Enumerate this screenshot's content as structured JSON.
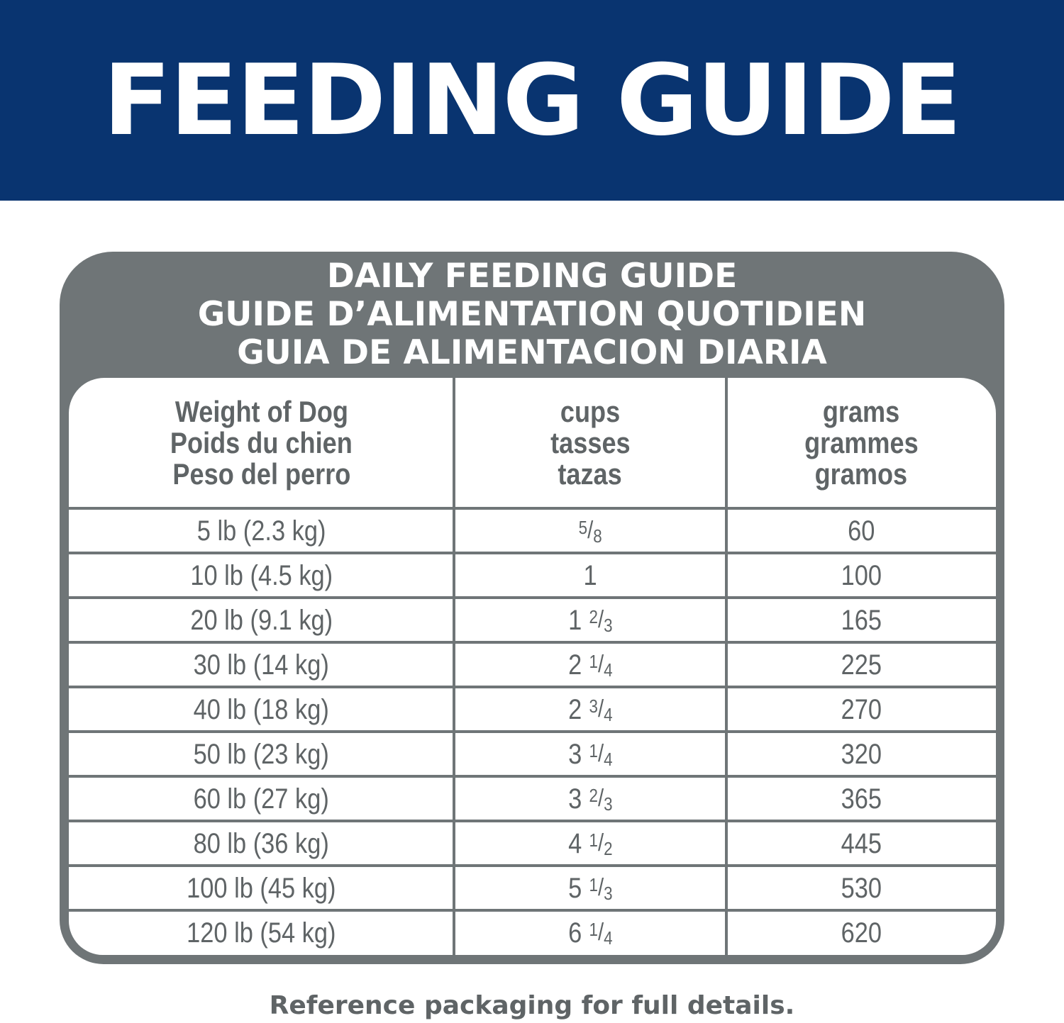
{
  "banner": {
    "title": "FEEDING GUIDE",
    "color": "#093470"
  },
  "table": {
    "title_lines": [
      "DAILY FEEDING GUIDE",
      "GUIDE D’ALIMENTATION QUOTIDIEN",
      "GUIA DE ALIMENTACION DIARIA"
    ],
    "headers": [
      [
        "Weight of Dog",
        "Poids du chien",
        "Peso del perro"
      ],
      [
        "cups",
        "tasses",
        "tazas"
      ],
      [
        "grams",
        "grammes",
        "gramos"
      ]
    ],
    "rows": [
      {
        "weight": "5 lb (2.3 kg)",
        "cups_whole": "",
        "cups_num": "5",
        "cups_den": "8",
        "grams": "60"
      },
      {
        "weight": "10 lb (4.5 kg)",
        "cups_whole": "1",
        "cups_num": "",
        "cups_den": "",
        "grams": "100"
      },
      {
        "weight": "20 lb (9.1 kg)",
        "cups_whole": "1",
        "cups_num": "2",
        "cups_den": "3",
        "grams": "165"
      },
      {
        "weight": "30 lb (14 kg)",
        "cups_whole": "2",
        "cups_num": "1",
        "cups_den": "4",
        "grams": "225"
      },
      {
        "weight": "40 lb (18 kg)",
        "cups_whole": "2",
        "cups_num": "3",
        "cups_den": "4",
        "grams": "270"
      },
      {
        "weight": "50 lb (23 kg)",
        "cups_whole": "3",
        "cups_num": "1",
        "cups_den": "4",
        "grams": "320"
      },
      {
        "weight": "60 lb (27 kg)",
        "cups_whole": "3",
        "cups_num": "2",
        "cups_den": "3",
        "grams": "365"
      },
      {
        "weight": "80 lb (36 kg)",
        "cups_whole": "4",
        "cups_num": "1",
        "cups_den": "2",
        "grams": "445"
      },
      {
        "weight": "100 lb (45 kg)",
        "cups_whole": "5",
        "cups_num": "1",
        "cups_den": "3",
        "grams": "530"
      },
      {
        "weight": "120 lb (54 kg)",
        "cups_whole": "6",
        "cups_num": "1",
        "cups_den": "4",
        "grams": "620"
      }
    ],
    "border_color": "#6f7577"
  },
  "footer": {
    "text": "Reference packaging for full details."
  }
}
